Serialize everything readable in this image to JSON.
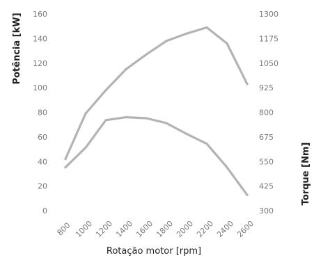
{
  "chart_data": {
    "type": "line",
    "title": "",
    "xlabel": "Rotação motor [rpm]",
    "ylabel": "Potência [kW]",
    "y2label": "Torque [Nm]",
    "x": [
      800,
      1000,
      1200,
      1400,
      1600,
      1800,
      2000,
      2200,
      2400,
      2600
    ],
    "xlim": [
      800,
      2600
    ],
    "ylim": [
      0,
      160
    ],
    "y2lim": [
      300,
      1300
    ],
    "x_ticks": [
      "800",
      "1000",
      "1200",
      "1400",
      "1600",
      "1800",
      "2000",
      "2200",
      "2400",
      "2600"
    ],
    "y_ticks": [
      "0",
      "20",
      "40",
      "60",
      "80",
      "100",
      "120",
      "140",
      "160"
    ],
    "y2_ticks": [
      "300",
      "425",
      "550",
      "675",
      "800",
      "925",
      "1050",
      "1175",
      "1300"
    ],
    "grid": false,
    "legend": "none",
    "series": [
      {
        "axis": "left",
        "values": [
          42,
          79,
          98,
          115,
          127,
          138,
          144,
          149,
          136,
          103
        ],
        "color": "#b3b3b3"
      },
      {
        "axis": "right",
        "values": [
          520,
          620,
          760,
          775,
          770,
          745,
          690,
          640,
          520,
          380
        ],
        "color": "#b3b3b3"
      }
    ]
  }
}
